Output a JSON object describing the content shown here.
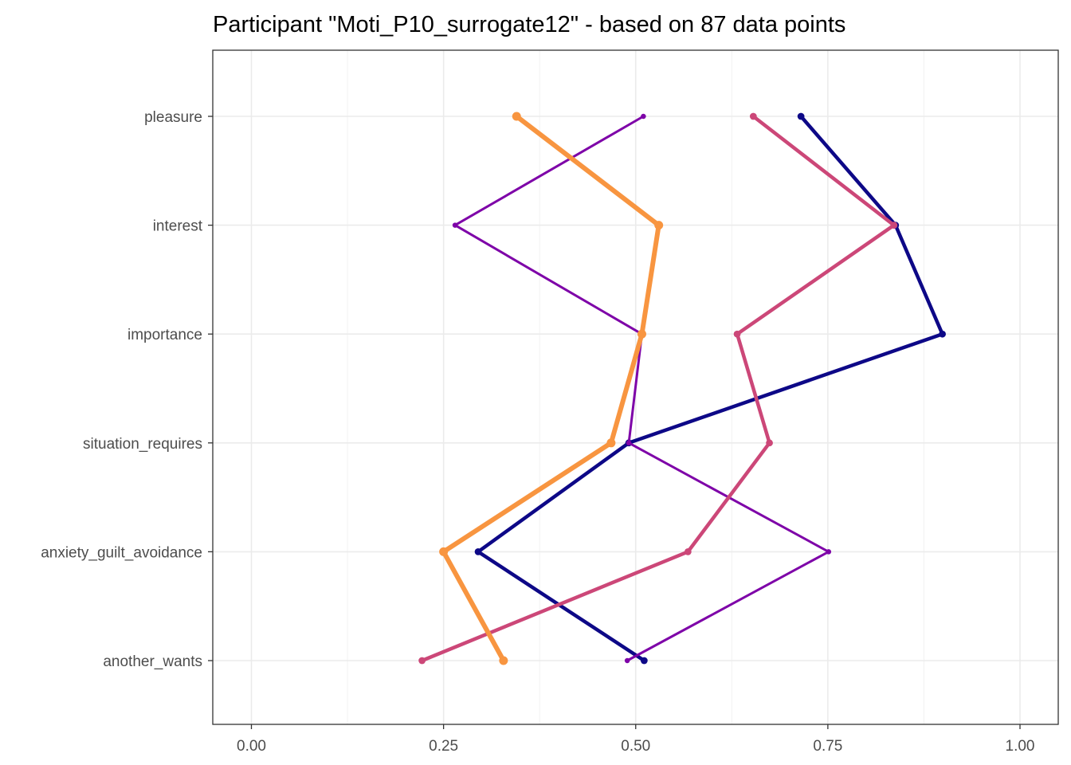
{
  "chart_data": {
    "type": "line",
    "title": "Participant \"Moti_P10_surrogate12\" - based on 87 data points",
    "xlabel": "",
    "ylabel": "",
    "xlim": [
      0,
      1
    ],
    "x_ticks": [
      "0.00",
      "0.25",
      "0.50",
      "0.75",
      "1.00"
    ],
    "categories": [
      "pleasure",
      "interest",
      "importance",
      "situation_requires",
      "anxiety_guilt_avoidance",
      "another_wants"
    ],
    "grid": true,
    "legend": "none",
    "series": [
      {
        "color": "#0D0887",
        "stroke_width": 4.5,
        "values": [
          0.715,
          0.838,
          0.899,
          0.491,
          0.295,
          0.511
        ]
      },
      {
        "color": "#7E03A8",
        "stroke_width": 3,
        "values": [
          0.51,
          0.265,
          0.508,
          0.491,
          0.751,
          0.489
        ]
      },
      {
        "color": "#CC4778",
        "stroke_width": 4.5,
        "values": [
          0.653,
          0.836,
          0.632,
          0.674,
          0.568,
          0.222
        ]
      },
      {
        "color": "#F89540",
        "stroke_width": 6,
        "values": [
          0.345,
          0.53,
          0.508,
          0.468,
          0.25,
          0.328
        ]
      }
    ]
  }
}
